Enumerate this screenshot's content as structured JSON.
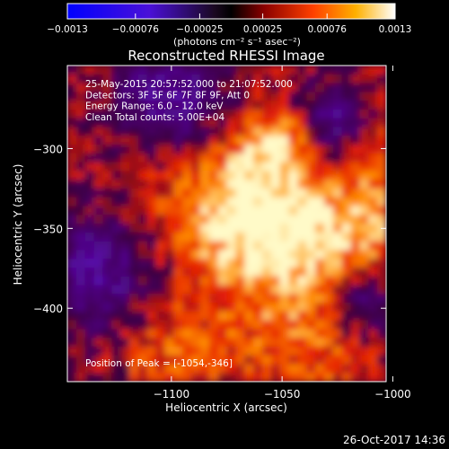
{
  "chart_data": {
    "type": "heatmap",
    "title": "Reconstructed RHESSI Image",
    "xlabel": "Heliocentric X (arcsec)",
    "ylabel": "Heliocentric Y (arcsec)",
    "xlim": [
      -1147,
      -1003
    ],
    "ylim": [
      -446,
      -248
    ],
    "x_ticks": [
      {
        "value": -1100,
        "label": "−1100"
      },
      {
        "value": -1050,
        "label": "−1050"
      },
      {
        "value": -1000,
        "label": "−1000"
      }
    ],
    "y_ticks": [
      {
        "value": -300,
        "label": "−300"
      },
      {
        "value": -350,
        "label": "−350"
      },
      {
        "value": -400,
        "label": "−400"
      }
    ],
    "colorbar": {
      "ticks": [
        "−0.0013",
        "−0.00076",
        "−0.00025",
        "0.00025",
        "0.00076",
        "0.0013"
      ],
      "tick_values": [
        -0.0013,
        -0.00076,
        -0.00025,
        0.00025,
        0.00076,
        0.0013
      ],
      "unit_label": "(photons cm⁻² s⁻¹ asec⁻²)"
    },
    "annotations": [
      "25-May-2015 20:57:52.000 to 21:07:52.000",
      "Detectors: 3F 5F 6F 7F 8F 9F, Att 0",
      "Energy Range: 6.0 - 12.0 keV",
      "Clean    Total counts: 5.00E+04"
    ],
    "peak_label": "Position of Peak = [-1054,-346]",
    "peak_position": [
      -1054,
      -346
    ],
    "colors": {
      "negative": "#1a0cff",
      "mid": "#000000",
      "positive": "#ffffff"
    }
  },
  "footer": {
    "timestamp": "26-Oct-2017 14:36"
  }
}
